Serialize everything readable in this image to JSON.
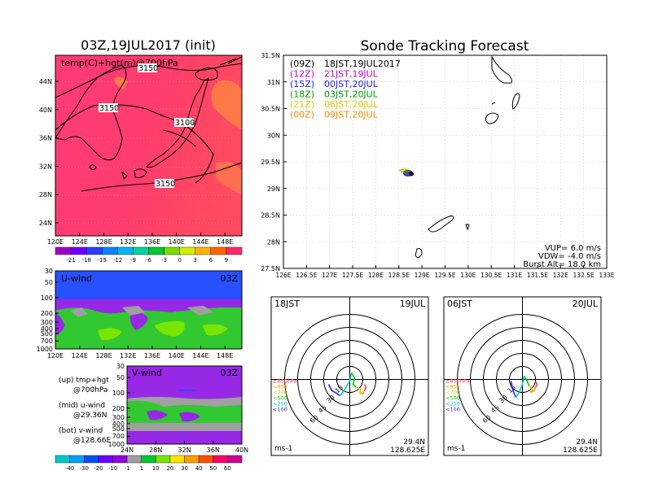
{
  "left": {
    "title": "03Z,19JUL2017 (init)",
    "map_label": "temp(C)+hgt(m)@700hPa",
    "contour_labels": [
      "3150",
      "3100",
      "3150",
      "3150"
    ],
    "lon_ticks": [
      "120E",
      "124E",
      "128E",
      "132E",
      "136E",
      "140E",
      "144E",
      "148E"
    ],
    "lat_ticks": [
      "44N",
      "40N",
      "36N",
      "32N",
      "28N",
      "24N"
    ],
    "temp_colorbar": {
      "labels": [
        "-21",
        "-18",
        "-15",
        "-12",
        "-9",
        "-6",
        "-3",
        "0",
        "3",
        "6",
        "9"
      ],
      "colors": [
        "#a000c8",
        "#6a00ff",
        "#2c3cff",
        "#0a82ff",
        "#00b4f0",
        "#00d2a0",
        "#00c832",
        "#78dc00",
        "#d8ec00",
        "#ffb400",
        "#ff6400",
        "#ff2864"
      ]
    },
    "u_panel": {
      "label": "U-wind",
      "time": "03Z",
      "p_ticks": [
        "30",
        "50",
        "100",
        "200",
        "300",
        "400",
        "500",
        "700",
        "1000"
      ],
      "lon_ticks": [
        "120E",
        "124E",
        "128E",
        "132E",
        "136E",
        "140E",
        "144E",
        "148E"
      ]
    },
    "v_panel": {
      "label": "V-wind",
      "time": "03Z",
      "p_ticks": [
        "30",
        "50",
        "100",
        "200",
        "300",
        "400",
        "500",
        "700",
        "1000"
      ],
      "lat_ticks": [
        "24N",
        "28N",
        "32N",
        "36N",
        "40N"
      ]
    },
    "notes": [
      {
        "a": "(up) tmp+hgt",
        "b": "@700hPa"
      },
      {
        "a": "(mid) u-wind",
        "b": "@29.36N"
      },
      {
        "a": "(bot) v-wind",
        "b": "@128.66E"
      }
    ],
    "wind_colorbar": {
      "labels": [
        "-40",
        "-30",
        "-20",
        "-10",
        "-1",
        "1",
        "10",
        "20",
        "30",
        "40",
        "50",
        "60"
      ],
      "colors": [
        "#00c8c8",
        "#00a0ff",
        "#0050ff",
        "#6a00ff",
        "#9600dc",
        "#a0a0a0",
        "#00c832",
        "#78e600",
        "#ffe600",
        "#ffa000",
        "#ff5000",
        "#ff0064",
        "#c80096"
      ]
    }
  },
  "right": {
    "title": "Sonde Tracking Forecast",
    "legend": [
      {
        "code": "(09Z)",
        "time": "18JST,19JUL2017",
        "color": "#000000"
      },
      {
        "code": "(12Z)",
        "time": "21JST,19JUL",
        "color": "#c800c8"
      },
      {
        "code": "(15Z)",
        "time": "00JST,20JUL",
        "color": "#2020ff"
      },
      {
        "code": "(18Z)",
        "time": "03JST,20JUL",
        "color": "#00a000"
      },
      {
        "code": "(21Z)",
        "time": "06JST,20JUL",
        "color": "#e6c800"
      },
      {
        "code": "(00Z)",
        "time": "09JST,20JUL",
        "color": "#ff8c00"
      }
    ],
    "lat_ticks": [
      "31.5N",
      "31N",
      "30.5N",
      "30N",
      "29.5N",
      "29N",
      "28.5N",
      "28N",
      "27.5N"
    ],
    "lon_ticks": [
      "126E",
      "126.5E",
      "127E",
      "127.5E",
      "128E",
      "128.5E",
      "129E",
      "129.5E",
      "130E",
      "130.5E",
      "131E",
      "131.5E",
      "132E",
      "132.5E",
      "133E"
    ],
    "params": [
      "VUP=  6.0  m/s",
      "VDW= -4.0  m/s",
      "Burst Alt=  18.0  km"
    ]
  },
  "hodographs": [
    {
      "left": "18JST",
      "right": "19JUL",
      "lat": "29.4N",
      "lon": "128.625E",
      "unit": "ms-1",
      "ring_labels": [
        "15",
        "30",
        "45",
        "60"
      ],
      "pressure_legend": [
        {
          "t": "≥850hPa",
          "c": "#ff3c3c"
        },
        {
          "t": "<850",
          "c": "#ff9600"
        },
        {
          "t": "<700",
          "c": "#e6c800"
        },
        {
          "t": "<500",
          "c": "#00c800"
        },
        {
          "t": "<250",
          "c": "#00c8c8"
        },
        {
          "t": "<100",
          "c": "#2828ff"
        }
      ]
    },
    {
      "left": "06JST",
      "right": "20JUL",
      "lat": "29.4N",
      "lon": "128.625E",
      "unit": "ms-1",
      "ring_labels": [
        "15",
        "30",
        "45",
        "60"
      ],
      "pressure_legend": [
        {
          "t": "≥850hPa",
          "c": "#ff3c3c"
        },
        {
          "t": "<850",
          "c": "#ff9600"
        },
        {
          "t": "<700",
          "c": "#e6c800"
        },
        {
          "t": "<500",
          "c": "#00c800"
        },
        {
          "t": "<250",
          "c": "#00c8c8"
        },
        {
          "t": "<100",
          "c": "#2828ff"
        }
      ]
    }
  ]
}
